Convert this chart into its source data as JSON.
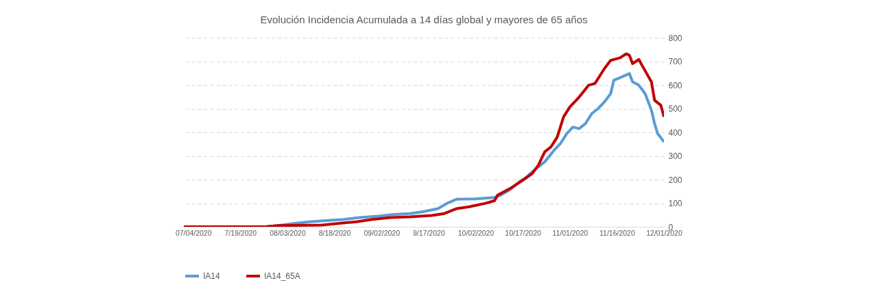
{
  "chart_data": {
    "type": "line",
    "title": "Evolución Incidencia Acumulada a 14 días global y mayores de 65 años",
    "xlim": [
      "2020-07-01",
      "2020-12-01"
    ],
    "xticks": [
      {
        "value": "2020-07-04",
        "label": "07/04/2020"
      },
      {
        "value": "2020-07-19",
        "label": "7/19/2020"
      },
      {
        "value": "2020-08-03",
        "label": "08/03/2020"
      },
      {
        "value": "2020-08-18",
        "label": "8/18/2020"
      },
      {
        "value": "2020-09-02",
        "label": "09/02/2020"
      },
      {
        "value": "2020-09-17",
        "label": "9/17/2020"
      },
      {
        "value": "2020-10-02",
        "label": "10/02/2020"
      },
      {
        "value": "2020-10-17",
        "label": "10/17/2020"
      },
      {
        "value": "2020-11-01",
        "label": "11/01/2020"
      },
      {
        "value": "2020-11-16",
        "label": "11/16/2020"
      },
      {
        "value": "2020-12-01",
        "label": "12/01/2020"
      }
    ],
    "ylim": [
      0,
      800
    ],
    "yticks": [
      0,
      100,
      200,
      300,
      400,
      500,
      600,
      700,
      800
    ],
    "grid": "y",
    "legend": "bottom",
    "marker": "none",
    "line_style": "solid",
    "series": [
      {
        "name": "IA14",
        "color": "#5b9bd5",
        "x": [
          "2020-07-01",
          "2020-07-27",
          "2020-07-31",
          "2020-08-05",
          "2020-08-10",
          "2020-08-16",
          "2020-08-21",
          "2020-08-26",
          "2020-09-01",
          "2020-09-06",
          "2020-09-11",
          "2020-09-15",
          "2020-09-20",
          "2020-09-23",
          "2020-09-26",
          "2020-10-02",
          "2020-10-08",
          "2020-10-10",
          "2020-10-13",
          "2020-10-16",
          "2020-10-18",
          "2020-10-20",
          "2020-10-24",
          "2020-10-27",
          "2020-10-29",
          "2020-10-31",
          "2020-11-02",
          "2020-11-04",
          "2020-11-06",
          "2020-11-08",
          "2020-11-10",
          "2020-11-12",
          "2020-11-14",
          "2020-11-15",
          "2020-11-17",
          "2020-11-20",
          "2020-11-21",
          "2020-11-23",
          "2020-11-25",
          "2020-11-27",
          "2020-11-28",
          "2020-11-29",
          "2020-12-01"
        ],
        "values": [
          0,
          0,
          5,
          14,
          21,
          27,
          31,
          39,
          45,
          52,
          56,
          63,
          77,
          100,
          117,
          118,
          124,
          134,
          158,
          190,
          208,
          232,
          275,
          324,
          352,
          394,
          422,
          415,
          437,
          479,
          500,
          528,
          563,
          620,
          631,
          648,
          613,
          599,
          563,
          493,
          437,
          394,
          359
        ]
      },
      {
        "name": "IA14_65A",
        "color": "#c00000",
        "x": [
          "2020-07-01",
          "2020-07-27",
          "2020-07-31",
          "2020-08-14",
          "2020-08-19",
          "2020-08-25",
          "2020-08-30",
          "2020-09-05",
          "2020-09-11",
          "2020-09-18",
          "2020-09-22",
          "2020-09-26",
          "2020-09-30",
          "2020-10-05",
          "2020-10-08",
          "2020-10-09",
          "2020-10-13",
          "2020-10-17",
          "2020-10-20",
          "2020-10-22",
          "2020-10-24",
          "2020-10-26",
          "2020-10-28",
          "2020-10-30",
          "2020-11-01",
          "2020-11-04",
          "2020-11-07",
          "2020-11-09",
          "2020-11-12",
          "2020-11-14",
          "2020-11-17",
          "2020-11-19",
          "2020-11-20",
          "2020-11-21",
          "2020-11-23",
          "2020-11-24",
          "2020-11-27",
          "2020-11-28",
          "2020-11-30",
          "2020-12-01"
        ],
        "values": [
          0,
          0,
          5,
          7,
          14,
          21,
          31,
          39,
          42,
          48,
          56,
          77,
          85,
          99,
          110,
          134,
          162,
          197,
          225,
          261,
          317,
          338,
          380,
          465,
          507,
          549,
          599,
          606,
          669,
          704,
          715,
          732,
          725,
          690,
          708,
          683,
          613,
          535,
          514,
          465
        ]
      }
    ]
  }
}
